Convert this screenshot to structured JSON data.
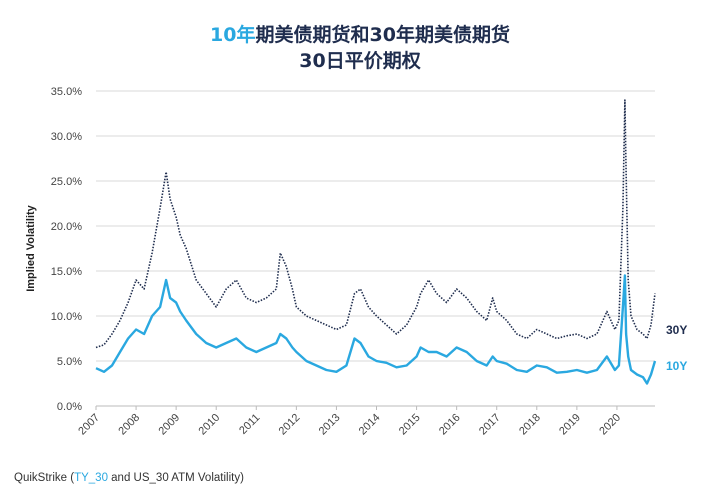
{
  "title": {
    "line1_accent": "10年",
    "line1_rest": "期美债期货和30年期美债期货",
    "line2": "30日平价期权"
  },
  "source": {
    "prefix": "QuikStrike (",
    "accent": "TY_30",
    "suffix": " and US_30 ATM Volatility)"
  },
  "colors": {
    "ten_year": "#2aa8e0",
    "thirty_year": "#1f2d4e",
    "grid": "#d9d9d9",
    "axis": "#bbbbbb"
  },
  "chart_data": {
    "type": "line",
    "title": "10年期美债期货和30年期美债期货 30日平价期权",
    "ylabel": "Implied Volatility",
    "xlabel": "",
    "ylim": [
      0,
      35
    ],
    "xlim": [
      2007.0,
      2020.95
    ],
    "y_ticks": [
      "0.0%",
      "5.0%",
      "10.0%",
      "15.0%",
      "20.0%",
      "25.0%",
      "30.0%",
      "35.0%"
    ],
    "x_ticks": [
      "2007",
      "2008",
      "2009",
      "2010",
      "2011",
      "2012",
      "2013",
      "2014",
      "2015",
      "2016",
      "2017",
      "2018",
      "2019",
      "2020"
    ],
    "grid": "horizontal",
    "series": [
      {
        "name": "30Y",
        "style": "dotted",
        "x": [
          2007.0,
          2007.2,
          2007.4,
          2007.6,
          2007.8,
          2008.0,
          2008.2,
          2008.4,
          2008.6,
          2008.75,
          2008.85,
          2009.0,
          2009.1,
          2009.25,
          2009.5,
          2009.75,
          2010.0,
          2010.25,
          2010.5,
          2010.75,
          2011.0,
          2011.25,
          2011.5,
          2011.6,
          2011.75,
          2011.9,
          2012.0,
          2012.25,
          2012.5,
          2012.75,
          2013.0,
          2013.25,
          2013.45,
          2013.6,
          2013.8,
          2014.0,
          2014.25,
          2014.5,
          2014.75,
          2015.0,
          2015.1,
          2015.3,
          2015.5,
          2015.75,
          2016.0,
          2016.25,
          2016.5,
          2016.75,
          2016.9,
          2017.0,
          2017.25,
          2017.5,
          2017.75,
          2018.0,
          2018.25,
          2018.5,
          2018.75,
          2019.0,
          2019.25,
          2019.5,
          2019.75,
          2019.95,
          2020.05,
          2020.15,
          2020.2,
          2020.23,
          2020.28,
          2020.35,
          2020.5,
          2020.65,
          2020.75,
          2020.85,
          2020.95
        ],
        "values": [
          6.5,
          6.8,
          8.0,
          9.5,
          11.5,
          14.0,
          13.0,
          17.0,
          22.0,
          26.0,
          23.0,
          21.0,
          19.0,
          17.5,
          14.0,
          12.5,
          11.0,
          13.0,
          14.0,
          12.0,
          11.5,
          12.0,
          13.0,
          17.0,
          15.5,
          13.0,
          11.0,
          10.0,
          9.5,
          9.0,
          8.5,
          9.0,
          12.5,
          13.0,
          11.0,
          10.0,
          9.0,
          8.0,
          9.0,
          11.0,
          12.5,
          14.0,
          12.5,
          11.5,
          13.0,
          12.0,
          10.5,
          9.5,
          12.0,
          10.5,
          9.5,
          8.0,
          7.5,
          8.5,
          8.0,
          7.5,
          7.8,
          8.0,
          7.5,
          8.0,
          10.5,
          8.5,
          9.5,
          22.0,
          34.0,
          26.0,
          14.0,
          10.0,
          8.5,
          8.0,
          7.5,
          9.0,
          12.5
        ]
      },
      {
        "name": "10Y",
        "style": "solid",
        "x": [
          2007.0,
          2007.2,
          2007.4,
          2007.6,
          2007.8,
          2008.0,
          2008.2,
          2008.4,
          2008.6,
          2008.75,
          2008.85,
          2009.0,
          2009.1,
          2009.25,
          2009.5,
          2009.75,
          2010.0,
          2010.25,
          2010.5,
          2010.75,
          2011.0,
          2011.25,
          2011.5,
          2011.6,
          2011.75,
          2011.9,
          2012.0,
          2012.25,
          2012.5,
          2012.75,
          2013.0,
          2013.25,
          2013.45,
          2013.6,
          2013.8,
          2014.0,
          2014.25,
          2014.5,
          2014.75,
          2015.0,
          2015.1,
          2015.3,
          2015.5,
          2015.75,
          2016.0,
          2016.25,
          2016.5,
          2016.75,
          2016.9,
          2017.0,
          2017.25,
          2017.5,
          2017.75,
          2018.0,
          2018.25,
          2018.5,
          2018.75,
          2019.0,
          2019.25,
          2019.5,
          2019.75,
          2019.95,
          2020.05,
          2020.15,
          2020.2,
          2020.23,
          2020.28,
          2020.35,
          2020.5,
          2020.65,
          2020.75,
          2020.85,
          2020.95
        ],
        "values": [
          4.2,
          3.8,
          4.5,
          6.0,
          7.5,
          8.5,
          8.0,
          10.0,
          11.0,
          14.0,
          12.0,
          11.5,
          10.5,
          9.5,
          8.0,
          7.0,
          6.5,
          7.0,
          7.5,
          6.5,
          6.0,
          6.5,
          7.0,
          8.0,
          7.5,
          6.5,
          6.0,
          5.0,
          4.5,
          4.0,
          3.8,
          4.5,
          7.5,
          7.0,
          5.5,
          5.0,
          4.8,
          4.3,
          4.5,
          5.5,
          6.5,
          6.0,
          6.0,
          5.5,
          6.5,
          6.0,
          5.0,
          4.5,
          5.5,
          5.0,
          4.7,
          4.0,
          3.8,
          4.5,
          4.3,
          3.7,
          3.8,
          4.0,
          3.7,
          4.0,
          5.5,
          4.0,
          4.5,
          11.0,
          14.5,
          8.0,
          5.5,
          4.0,
          3.5,
          3.2,
          2.5,
          3.5,
          5.0
        ]
      }
    ]
  }
}
